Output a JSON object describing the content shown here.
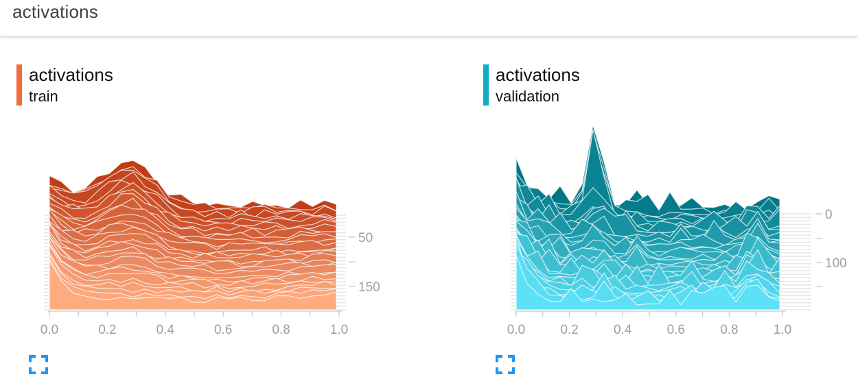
{
  "header": {
    "title": "activations"
  },
  "cards": [
    {
      "id": "train",
      "title": "activations",
      "run": "train",
      "color_back": "#c03d17",
      "color_front": "#ffab80",
      "tag_color": "#f26c3d",
      "chart_data": {
        "type": "area",
        "mode": "offset",
        "x_range": [
          0.0,
          1.0
        ],
        "x_ticks": [
          "0.0",
          "0.2",
          "0.4",
          "0.6",
          "0.8",
          "1.0"
        ],
        "step_range": [
          0,
          190
        ],
        "y_ticks": [
          "50",
          "150"
        ]
      }
    },
    {
      "id": "validation",
      "title": "activations",
      "run": "validation",
      "color_back": "#007786",
      "color_front": "#5ce1f6",
      "tag_color": "#10aec2",
      "chart_data": {
        "type": "area",
        "mode": "offset",
        "x_range": [
          0.0,
          1.0
        ],
        "x_ticks": [
          "0.0",
          "0.2",
          "0.4",
          "0.6",
          "0.8",
          "1.0"
        ],
        "step_range": [
          0,
          180
        ],
        "y_ticks": [
          "0",
          "100"
        ]
      }
    }
  ]
}
